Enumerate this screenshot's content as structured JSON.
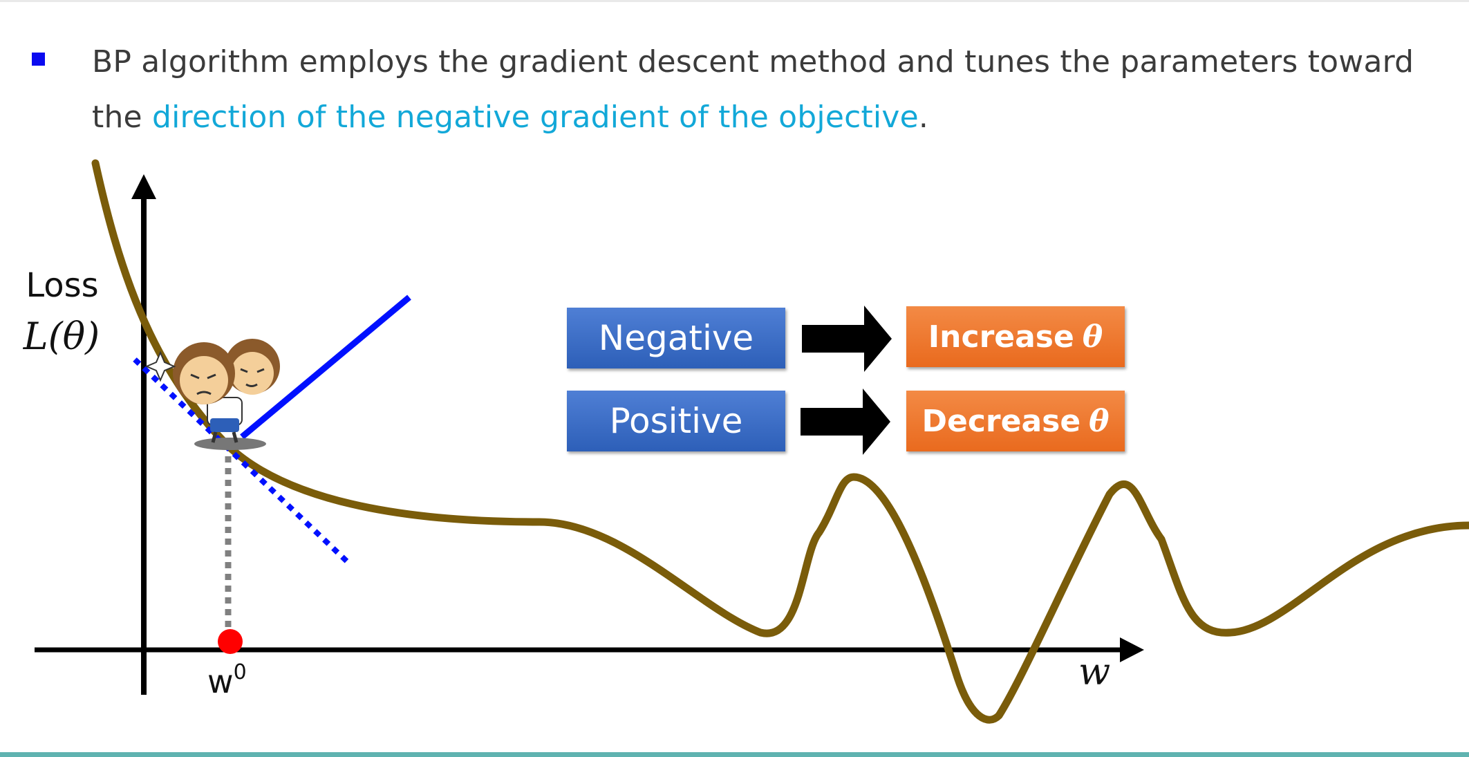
{
  "bullet": {
    "text_before": "BP algorithm employs the gradient descent method and tunes the parameters toward the ",
    "highlight": "direction of the negative gradient of the objective",
    "text_after": "."
  },
  "axes": {
    "y_label": "Loss",
    "y_symbol": "L(θ)",
    "x_label": "w",
    "start_label": "w",
    "start_sup": "0"
  },
  "rules": [
    {
      "sign": "Negative",
      "action": "Increase",
      "param": "θ"
    },
    {
      "sign": "Positive",
      "action": "Decrease",
      "param": "θ"
    }
  ],
  "colors": {
    "curve": "#7a5c0a",
    "tangent": "#0010ff",
    "start_point": "#ff0000",
    "drop_line": "#808080",
    "rule_box": "#3b6cc7",
    "action_box": "#ee7a30",
    "highlight_text": "#12a8d8",
    "bullet": "#0a0af0"
  },
  "icons": {
    "bullet": "square-bullet-icon",
    "arrow": "right-arrow-icon",
    "character": "cartoon-monkey-icon"
  }
}
